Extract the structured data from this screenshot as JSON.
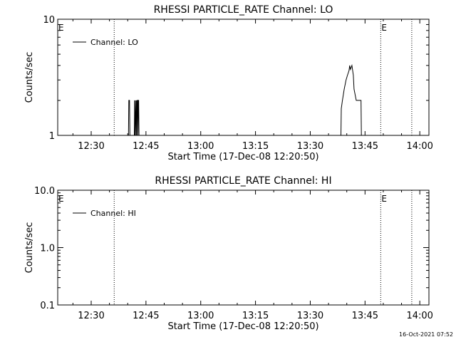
{
  "footer": {
    "timestamp": "16-Oct-2021 07:52"
  },
  "chart_data": [
    {
      "type": "line",
      "title": "RHESSI PARTICLE_RATE Channel: LO",
      "xlabel": "Start Time (17-Dec-08 12:20:50)",
      "ylabel": "Counts/sec",
      "y_scale": "log",
      "ylim": [
        1,
        10
      ],
      "y_ticks": [
        {
          "v": 1,
          "label": "1"
        },
        {
          "v": 10,
          "label": "10"
        }
      ],
      "xlim_minutes": [
        740.83,
        842.5
      ],
      "x_ticks": [
        {
          "v": 750,
          "label": "12:30"
        },
        {
          "v": 765,
          "label": "12:45"
        },
        {
          "v": 780,
          "label": "13:00"
        },
        {
          "v": 795,
          "label": "13:15"
        },
        {
          "v": 810,
          "label": "13:30"
        },
        {
          "v": 825,
          "label": "13:45"
        },
        {
          "v": 840,
          "label": "14:00"
        }
      ],
      "event_lines": [
        {
          "v": 756.3,
          "label": "E"
        },
        {
          "v": 829.3,
          "label": ""
        },
        {
          "v": 837.8,
          "label": ""
        }
      ],
      "edge_markers": [
        {
          "v": 740.83,
          "label": "E"
        },
        {
          "v": 829.3,
          "label": "E"
        }
      ],
      "legend": {
        "position": "top-left",
        "entries": [
          "Channel: LO"
        ]
      },
      "series": [
        {
          "name": "Channel: LO",
          "x": [
            740.83,
            760.2,
            760.3,
            760.5,
            760.6,
            761.8,
            761.9,
            762.0,
            762.1,
            762.3,
            762.4,
            762.5,
            762.6,
            762.7,
            762.8,
            762.9,
            763.0,
            763.1,
            763.2,
            818.4,
            818.5,
            818.8,
            819.3,
            819.8,
            820.2,
            820.6,
            820.8,
            821.0,
            821.4,
            821.8,
            822.0,
            822.6,
            823.5,
            823.9,
            824.0,
            842.5
          ],
          "y": [
            1,
            1,
            2,
            2,
            1,
            1,
            2,
            1,
            2,
            1,
            2,
            1,
            2,
            2,
            1,
            2,
            2,
            1,
            1,
            1,
            1.7,
            2,
            2.5,
            3,
            3.3,
            3.6,
            4,
            3.7,
            4,
            3.3,
            2.5,
            2,
            2,
            2,
            1,
            1
          ]
        }
      ]
    },
    {
      "type": "line",
      "title": "RHESSI PARTICLE_RATE Channel: HI",
      "xlabel": "Start Time (17-Dec-08 12:20:50)",
      "ylabel": "Counts/sec",
      "y_scale": "log",
      "ylim": [
        0.1,
        10
      ],
      "y_ticks": [
        {
          "v": 0.1,
          "label": "0.1"
        },
        {
          "v": 1,
          "label": "1.0"
        },
        {
          "v": 10,
          "label": "10.0"
        }
      ],
      "xlim_minutes": [
        740.83,
        842.5
      ],
      "x_ticks": [
        {
          "v": 750,
          "label": "12:30"
        },
        {
          "v": 765,
          "label": "12:45"
        },
        {
          "v": 780,
          "label": "13:00"
        },
        {
          "v": 795,
          "label": "13:15"
        },
        {
          "v": 810,
          "label": "13:30"
        },
        {
          "v": 825,
          "label": "13:45"
        },
        {
          "v": 840,
          "label": "14:00"
        }
      ],
      "event_lines": [
        {
          "v": 756.3,
          "label": ""
        },
        {
          "v": 829.3,
          "label": ""
        },
        {
          "v": 837.8,
          "label": ""
        }
      ],
      "edge_markers": [
        {
          "v": 740.83,
          "label": "E"
        },
        {
          "v": 829.3,
          "label": "E"
        }
      ],
      "legend": {
        "position": "top-left",
        "entries": [
          "Channel: HI"
        ]
      },
      "series": [
        {
          "name": "Channel: HI",
          "x": [],
          "y": []
        }
      ]
    }
  ]
}
